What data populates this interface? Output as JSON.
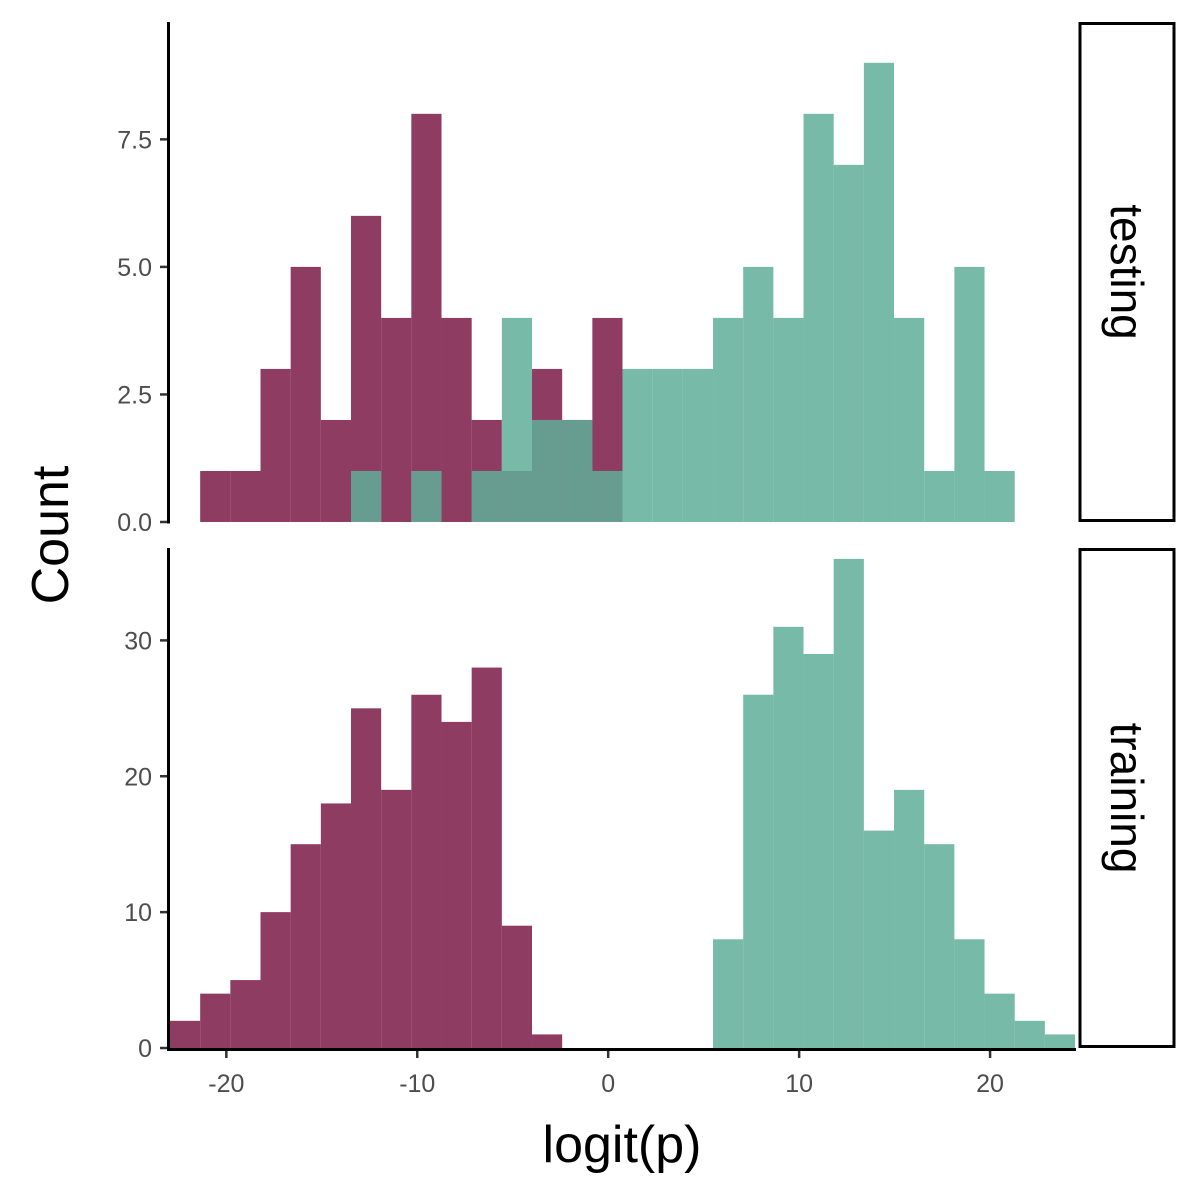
{
  "chart_data": {
    "type": "bar",
    "subtype": "faceted-overlapping-histogram",
    "xlabel": "logit(p)",
    "ylabel": "Count",
    "x_ticks": [
      -20,
      -10,
      0,
      10,
      20
    ],
    "xlim": [
      -22.95,
      24.5
    ],
    "bin_width": 1.58,
    "bin_starts": [
      -22.95,
      -21.37,
      -19.79,
      -18.21,
      -16.63,
      -15.05,
      -13.47,
      -11.89,
      -10.31,
      -8.73,
      -7.15,
      -5.57,
      -3.99,
      -2.41,
      -0.83,
      0.75,
      2.33,
      3.91,
      5.49,
      7.07,
      8.65,
      10.23,
      11.81,
      13.39,
      14.97,
      16.55,
      18.13,
      19.71,
      21.29,
      22.87
    ],
    "colors": {
      "class_a": "#7b1a48",
      "class_b": "#5fae98",
      "opacity": 0.85
    },
    "panels": [
      {
        "strip": "testing",
        "ylim": [
          0,
          9.8
        ],
        "y_ticks": [
          0,
          2.5,
          5,
          7.5
        ],
        "y_tick_labels": [
          "0.0",
          "2.5",
          "5.0",
          "7.5"
        ],
        "series": [
          {
            "color_key": "class_a",
            "counts": [
              0,
              1,
              1,
              3,
              5,
              2,
              6,
              4,
              8,
              4,
              2,
              1,
              3,
              2,
              4,
              0,
              0,
              0,
              0,
              0,
              0,
              0,
              0,
              0,
              0,
              0,
              0,
              0,
              0,
              0
            ]
          },
          {
            "color_key": "class_b",
            "counts": [
              0,
              0,
              0,
              0,
              0,
              0,
              1,
              0,
              1,
              0,
              1,
              4,
              2,
              2,
              1,
              3,
              3,
              3,
              4,
              5,
              4,
              8,
              7,
              9,
              4,
              1,
              5,
              1,
              0,
              0
            ]
          }
        ]
      },
      {
        "strip": "training",
        "ylim": [
          0,
          36.8
        ],
        "y_ticks": [
          0,
          10,
          20,
          30
        ],
        "y_tick_labels": [
          "0",
          "10",
          "20",
          "30"
        ],
        "series": [
          {
            "color_key": "class_a",
            "counts": [
              2,
              4,
              5,
              10,
              15,
              18,
              25,
              19,
              26,
              24,
              28,
              9,
              1,
              0,
              0,
              0,
              0,
              0,
              0,
              0,
              0,
              0,
              0,
              0,
              0,
              0,
              0,
              0,
              0,
              0
            ]
          },
          {
            "color_key": "class_b",
            "counts": [
              0,
              0,
              0,
              0,
              0,
              0,
              0,
              0,
              0,
              0,
              0,
              0,
              0,
              0,
              0,
              0,
              0,
              0,
              8,
              26,
              31,
              29,
              36,
              16,
              19,
              15,
              8,
              4,
              2,
              1
            ]
          }
        ]
      }
    ],
    "grid": false,
    "legend": "none"
  }
}
